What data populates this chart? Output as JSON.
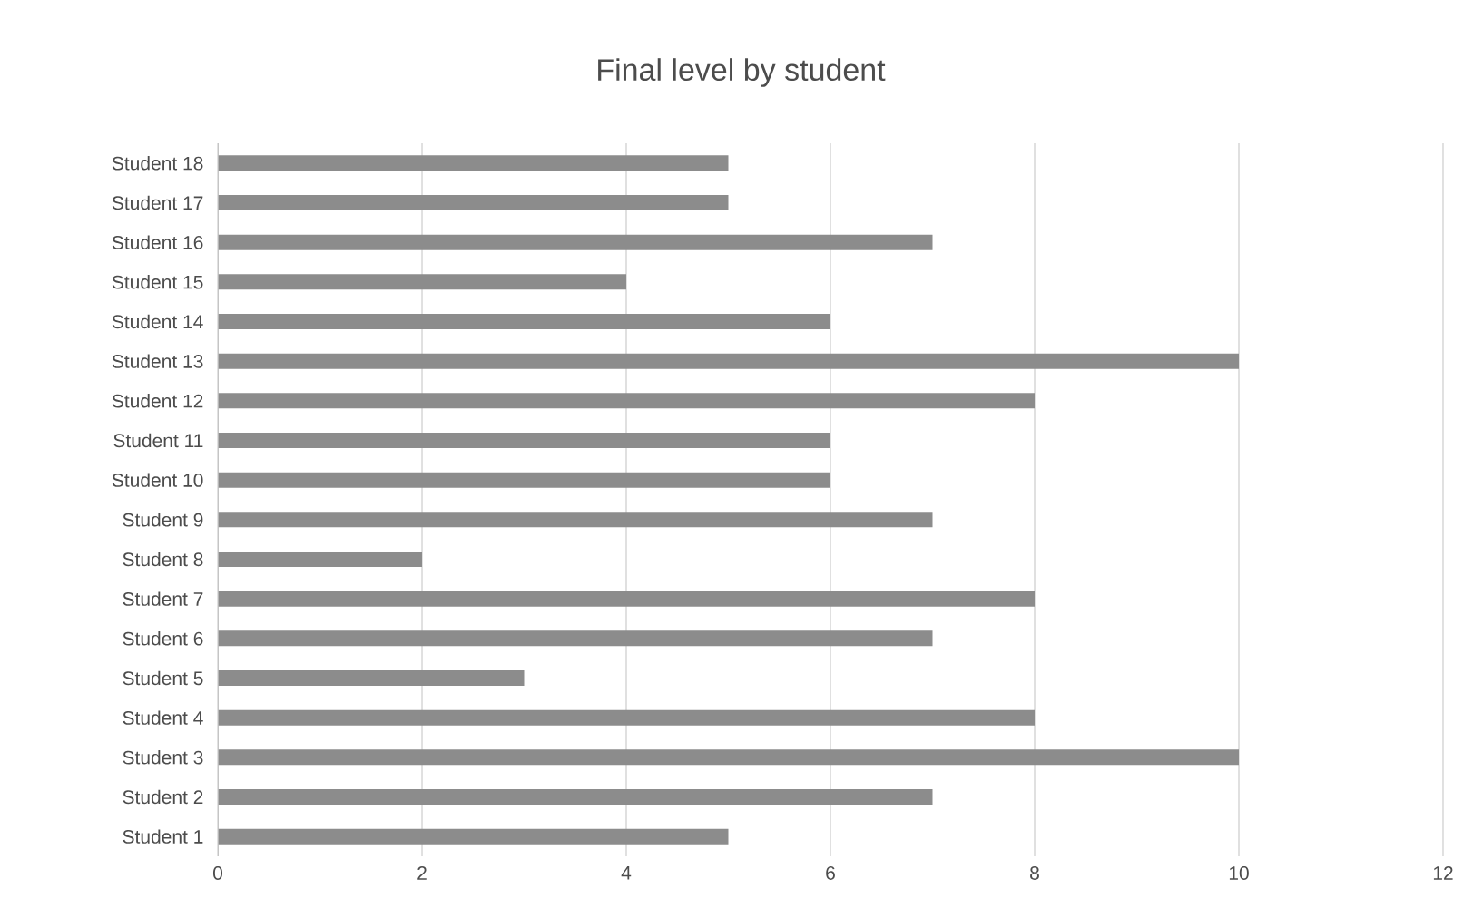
{
  "chart_data": {
    "type": "bar",
    "orientation": "horizontal",
    "title": "Final level by student",
    "categories": [
      "Student 18",
      "Student 17",
      "Student 16",
      "Student 15",
      "Student 14",
      "Student 13",
      "Student 12",
      "Student 11",
      "Student 10",
      "Student 9",
      "Student 8",
      "Student 7",
      "Student 6",
      "Student 5",
      "Student 4",
      "Student 3",
      "Student 2",
      "Student 1"
    ],
    "values": [
      5,
      5,
      7,
      4,
      6,
      10,
      8,
      6,
      6,
      7,
      2,
      8,
      7,
      3,
      8,
      10,
      7,
      5
    ],
    "color": "#8c8c8c",
    "xlim": [
      0,
      12
    ],
    "xticks": [
      0,
      2,
      4,
      6,
      8,
      10,
      12
    ],
    "grid": "x"
  }
}
